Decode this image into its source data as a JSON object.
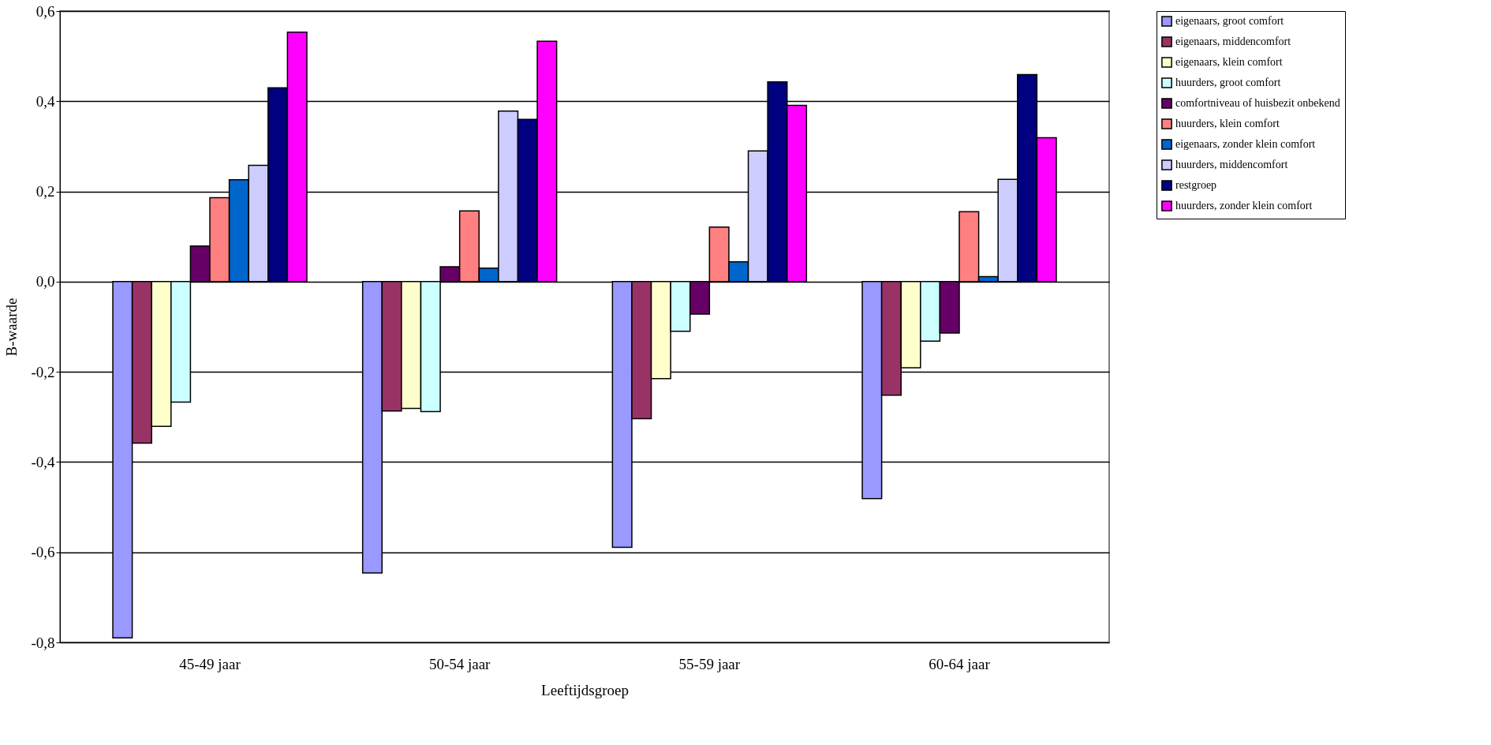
{
  "chart_data": {
    "type": "bar",
    "xlabel": "Leeftijdsgroep",
    "ylabel": "B-waarde",
    "categories": [
      "45-49 jaar",
      "50-54 jaar",
      "55-59 jaar",
      "60-64 jaar"
    ],
    "series": [
      {
        "name": "eigenaars, groot comfort",
        "color": "#9999ff",
        "values": [
          -0.79,
          -0.646,
          -0.589,
          -0.481
        ]
      },
      {
        "name": "eigenaars, middencomfort",
        "color": "#993366",
        "values": [
          -0.358,
          -0.287,
          -0.304,
          -0.252
        ]
      },
      {
        "name": "eigenaars, klein comfort",
        "color": "#ffffcc",
        "values": [
          -0.321,
          -0.281,
          -0.215,
          -0.191
        ]
      },
      {
        "name": "huurders, groot comfort",
        "color": "#ccffff",
        "values": [
          -0.267,
          -0.288,
          -0.11,
          -0.132
        ]
      },
      {
        "name": "comfortniveau of huisbezit onbekend",
        "color": "#660066",
        "values": [
          0.079,
          0.033,
          -0.072,
          -0.114
        ]
      },
      {
        "name": "huurders, klein comfort",
        "color": "#ff8080",
        "values": [
          0.186,
          0.157,
          0.121,
          0.155
        ]
      },
      {
        "name": "eigenaars, zonder klein comfort",
        "color": "#0066cc",
        "values": [
          0.226,
          0.03,
          0.044,
          0.011
        ]
      },
      {
        "name": "huurders, middencomfort",
        "color": "#ccccff",
        "values": [
          0.258,
          0.378,
          0.29,
          0.227
        ]
      },
      {
        "name": "restgroep",
        "color": "#000080",
        "values": [
          0.43,
          0.36,
          0.443,
          0.459
        ]
      },
      {
        "name": "huurders, zonder klein comfort",
        "color": "#ff00ff",
        "values": [
          0.553,
          0.533,
          0.391,
          0.319
        ]
      }
    ],
    "ylim": [
      -0.8,
      0.6
    ],
    "yticks": [
      {
        "value": -0.8,
        "label": "-0,8"
      },
      {
        "value": -0.6,
        "label": "-0,6"
      },
      {
        "value": -0.4,
        "label": "-0,4"
      },
      {
        "value": -0.2,
        "label": "-0,2"
      },
      {
        "value": 0,
        "label": "0,0"
      },
      {
        "value": 0.2,
        "label": "0,2"
      },
      {
        "value": 0.4,
        "label": "0,4"
      },
      {
        "value": 0.6,
        "label": "0,6"
      }
    ],
    "grid": "y",
    "legend": "right"
  }
}
